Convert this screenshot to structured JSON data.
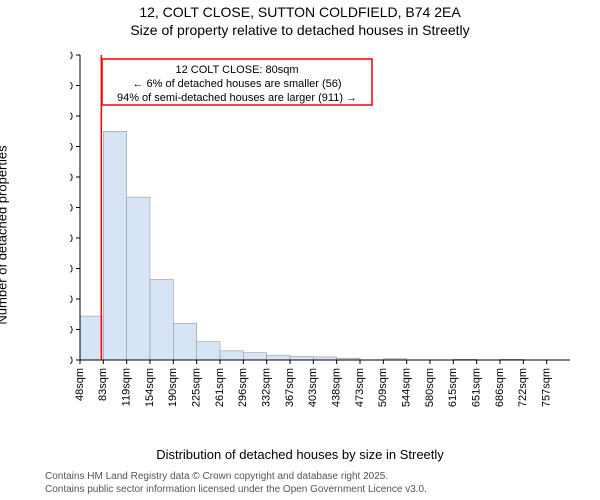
{
  "title_main": "12, COLT CLOSE, SUTTON COLDFIELD, B74 2EA",
  "title_sub": "Size of property relative to detached houses in Streetly",
  "ylabel": "Number of detached properties",
  "xlabel": "Distribution of detached houses by size in Streetly",
  "attribution_line1": "Contains HM Land Registry data © Crown copyright and database right 2025.",
  "attribution_line2": "Contains public sector information licensed under the Open Government Licence v3.0.",
  "chart": {
    "type": "histogram",
    "background_color": "#ffffff",
    "bar_fill": "#d6e4f5",
    "bar_stroke": "#888888",
    "axis_color": "#000000",
    "marker_color": "#ff0000",
    "text_color": "#000000",
    "attribution_color": "#555555",
    "label_fontsize": 13,
    "title_fontsize": 14,
    "tick_fontsize": 11,
    "annot_fontsize": 11,
    "ylim": [
      0,
      500
    ],
    "ytick_step": 50,
    "bar_width_ratio": 1.0,
    "xtick_suffix": "sqm",
    "xticks": [
      48,
      83,
      119,
      154,
      190,
      225,
      261,
      296,
      332,
      367,
      403,
      438,
      473,
      509,
      544,
      580,
      615,
      651,
      686,
      722,
      757
    ],
    "values": [
      72,
      375,
      267,
      132,
      60,
      30,
      15,
      12,
      8,
      6,
      5,
      3,
      0,
      2,
      0,
      0,
      1,
      0,
      1,
      0,
      0
    ],
    "marker_value": 80,
    "annotation": {
      "line1": "12 COLT CLOSE: 80sqm",
      "line2": "← 6% of detached houses are smaller (56)",
      "line3": "94% of semi-detached houses are larger (911) →",
      "box_stroke": "#ff0000",
      "box_fill": "#ffffff"
    }
  }
}
